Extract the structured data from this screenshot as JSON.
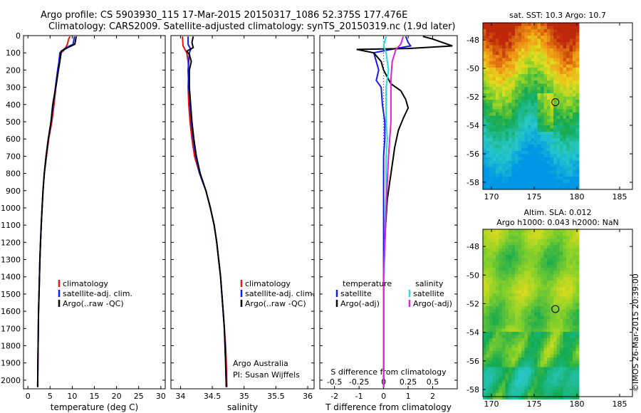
{
  "header": {
    "line1": "Argo profile: CS 5903930_115 17-Mar-2015 20150317_1086 52.375S 177.476E",
    "line2": "Climatology: CARS2009. Satellite-adjusted climatology: synTS_20150319.nc (1.9d later)"
  },
  "colors": {
    "climatology": "#ee1111",
    "satellite": "#1a1ae6",
    "argo": "#000000",
    "cyan": "#22dddd",
    "magenta": "#dd22dd"
  },
  "chart_data": [
    {
      "type": "line",
      "id": "temperature",
      "xlabel": "temperature (deg C)",
      "xlim": [
        -1,
        31
      ],
      "xticks": [
        0,
        5,
        10,
        15,
        20,
        25,
        30
      ],
      "ylim": [
        0,
        2050
      ],
      "yticks": [
        0,
        100,
        200,
        300,
        400,
        500,
        600,
        700,
        800,
        900,
        1000,
        1100,
        1200,
        1300,
        1400,
        1500,
        1600,
        1700,
        1800,
        1900,
        2000
      ],
      "legend": [
        "climatology",
        "satellite-adj. clim.",
        "Argo(..raw -QC)"
      ],
      "series": [
        {
          "name": "climatology",
          "color": "#ee1111",
          "points": [
            [
              9.5,
              5
            ],
            [
              9.2,
              20
            ],
            [
              8.9,
              50
            ],
            [
              8.3,
              80
            ],
            [
              7.5,
              100
            ],
            [
              7.2,
              150
            ],
            [
              6.8,
              200
            ],
            [
              6.3,
              300
            ],
            [
              5.9,
              400
            ],
            [
              5.4,
              500
            ],
            [
              4.7,
              600
            ],
            [
              4.2,
              700
            ],
            [
              3.7,
              800
            ],
            [
              3.4,
              900
            ],
            [
              3.2,
              1000
            ],
            [
              3.0,
              1100
            ],
            [
              2.85,
              1200
            ],
            [
              2.7,
              1300
            ],
            [
              2.6,
              1400
            ],
            [
              2.5,
              1500
            ],
            [
              2.4,
              1600
            ],
            [
              2.35,
              1700
            ],
            [
              2.3,
              1800
            ],
            [
              2.25,
              1900
            ],
            [
              2.2,
              2040
            ]
          ]
        },
        {
          "name": "satellite-adj. clim.",
          "color": "#1a1ae6",
          "points": [
            [
              10.5,
              5
            ],
            [
              10.4,
              20
            ],
            [
              10.2,
              50
            ],
            [
              8.3,
              75
            ],
            [
              7.2,
              100
            ],
            [
              7.0,
              150
            ],
            [
              6.7,
              200
            ],
            [
              6.2,
              300
            ],
            [
              5.7,
              400
            ],
            [
              5.2,
              500
            ],
            [
              4.6,
              600
            ],
            [
              4.1,
              700
            ],
            [
              3.7,
              800
            ],
            [
              3.4,
              900
            ],
            [
              3.2,
              1000
            ],
            [
              3.0,
              1100
            ],
            [
              2.85,
              1200
            ],
            [
              2.7,
              1300
            ],
            [
              2.6,
              1400
            ],
            [
              2.5,
              1500
            ],
            [
              2.4,
              1600
            ],
            [
              2.35,
              1700
            ],
            [
              2.3,
              1800
            ],
            [
              2.25,
              1900
            ],
            [
              2.2,
              2040
            ]
          ]
        },
        {
          "name": "Argo(..raw -QC)",
          "color": "#000000",
          "points": [
            [
              10.9,
              5
            ],
            [
              10.8,
              20
            ],
            [
              10.6,
              50
            ],
            [
              9.0,
              70
            ],
            [
              7.5,
              90
            ],
            [
              7.2,
              150
            ],
            [
              6.9,
              200
            ],
            [
              6.3,
              300
            ],
            [
              5.6,
              400
            ],
            [
              5.2,
              500
            ],
            [
              4.6,
              600
            ],
            [
              4.1,
              700
            ],
            [
              3.7,
              800
            ],
            [
              3.4,
              900
            ],
            [
              3.2,
              1000
            ],
            [
              3.0,
              1100
            ],
            [
              2.85,
              1200
            ],
            [
              2.7,
              1300
            ],
            [
              2.6,
              1400
            ],
            [
              2.5,
              1500
            ],
            [
              2.4,
              1600
            ],
            [
              2.35,
              1700
            ],
            [
              2.3,
              1800
            ],
            [
              2.25,
              1900
            ],
            [
              2.2,
              2040
            ]
          ]
        }
      ]
    },
    {
      "type": "line",
      "id": "salinity",
      "xlabel": "salinity",
      "xlim": [
        33.85,
        36.1
      ],
      "xticks": [
        34,
        34.5,
        35,
        35.5,
        36
      ],
      "ylim": [
        0,
        2050
      ],
      "legend": [
        "climatology",
        "satellite-adj. clim.",
        "Argo(..raw -QC)"
      ],
      "annotation": [
        "Argo Australia",
        "PI: Susan Wijffels"
      ],
      "series": [
        {
          "name": "climatology",
          "color": "#ee1111",
          "points": [
            [
              34.03,
              5
            ],
            [
              34.04,
              60
            ],
            [
              34.1,
              100
            ],
            [
              34.12,
              150
            ],
            [
              34.13,
              200
            ],
            [
              34.12,
              300
            ],
            [
              34.13,
              400
            ],
            [
              34.15,
              500
            ],
            [
              34.18,
              600
            ],
            [
              34.22,
              700
            ],
            [
              34.3,
              800
            ],
            [
              34.4,
              900
            ],
            [
              34.47,
              1000
            ],
            [
              34.53,
              1100
            ],
            [
              34.57,
              1200
            ],
            [
              34.6,
              1300
            ],
            [
              34.63,
              1400
            ],
            [
              34.65,
              1500
            ],
            [
              34.67,
              1600
            ],
            [
              34.69,
              1700
            ],
            [
              34.71,
              1800
            ],
            [
              34.72,
              1900
            ],
            [
              34.73,
              2040
            ]
          ]
        },
        {
          "name": "satellite-adj. clim.",
          "color": "#1a1ae6",
          "points": [
            [
              34.12,
              5
            ],
            [
              34.12,
              50
            ],
            [
              34.16,
              80
            ],
            [
              34.14,
              100
            ],
            [
              34.13,
              150
            ],
            [
              34.12,
              200
            ],
            [
              34.13,
              300
            ],
            [
              34.15,
              400
            ],
            [
              34.17,
              500
            ],
            [
              34.2,
              600
            ],
            [
              34.24,
              700
            ],
            [
              34.3,
              800
            ],
            [
              34.4,
              900
            ],
            [
              34.47,
              1000
            ],
            [
              34.53,
              1100
            ],
            [
              34.57,
              1200
            ],
            [
              34.6,
              1300
            ],
            [
              34.63,
              1400
            ],
            [
              34.65,
              1500
            ],
            [
              34.67,
              1600
            ],
            [
              34.69,
              1700
            ],
            [
              34.7,
              1800
            ],
            [
              34.71,
              1900
            ],
            [
              34.72,
              2040
            ]
          ]
        },
        {
          "name": "Argo(..raw -QC)",
          "color": "#000000",
          "points": [
            [
              34.2,
              5
            ],
            [
              34.18,
              40
            ],
            [
              34.2,
              70
            ],
            [
              34.1,
              90
            ],
            [
              34.14,
              110
            ],
            [
              34.17,
              150
            ],
            [
              34.14,
              200
            ],
            [
              34.14,
              300
            ],
            [
              34.16,
              400
            ],
            [
              34.18,
              500
            ],
            [
              34.21,
              600
            ],
            [
              34.25,
              700
            ],
            [
              34.31,
              800
            ],
            [
              34.4,
              900
            ],
            [
              34.47,
              1000
            ],
            [
              34.53,
              1100
            ],
            [
              34.57,
              1200
            ],
            [
              34.6,
              1300
            ],
            [
              34.63,
              1400
            ],
            [
              34.65,
              1500
            ],
            [
              34.67,
              1600
            ],
            [
              34.69,
              1700
            ],
            [
              34.7,
              1800
            ],
            [
              34.71,
              1900
            ],
            [
              34.72,
              2040
            ]
          ]
        }
      ]
    },
    {
      "type": "line",
      "id": "difference",
      "xlabel": "T difference from climatology",
      "xlabel_top": "S difference from climatology",
      "xlim": [
        -2.6,
        3.0
      ],
      "xticks": [
        -2,
        -1,
        0,
        1,
        2
      ],
      "sxticks": [
        "-0.5",
        "-0.25",
        "0",
        "0.25",
        "0.5"
      ],
      "ylim": [
        0,
        2050
      ],
      "legend": {
        "temperature": [
          "temperature",
          "satellite",
          "Argo(-adj)"
        ],
        "salinity": [
          "salinity",
          "satellite",
          "Argo(-adj)"
        ]
      },
      "series": [
        {
          "name": "satellite",
          "group": "temperature",
          "color": "#1a1ae6",
          "points": [
            [
              0.9,
              5
            ],
            [
              1.0,
              40
            ],
            [
              1.1,
              60
            ],
            [
              0.3,
              80
            ],
            [
              -0.4,
              100
            ],
            [
              -0.3,
              150
            ],
            [
              -0.2,
              200
            ],
            [
              -0.3,
              260
            ],
            [
              -0.1,
              300
            ],
            [
              -0.05,
              400
            ],
            [
              0.05,
              500
            ],
            [
              0.05,
              600
            ],
            [
              0.0,
              700
            ],
            [
              0.0,
              900
            ],
            [
              0.0,
              1200
            ],
            [
              0.0,
              2040
            ]
          ]
        },
        {
          "name": "Argo(-adj)",
          "group": "temperature",
          "color": "#000000",
          "points": [
            [
              1.6,
              5
            ],
            [
              2.0,
              20
            ],
            [
              2.8,
              60
            ],
            [
              1.0,
              75
            ],
            [
              -1.1,
              80
            ],
            [
              -0.4,
              100
            ],
            [
              -0.1,
              150
            ],
            [
              0.0,
              200
            ],
            [
              0.3,
              280
            ],
            [
              0.7,
              320
            ],
            [
              0.9,
              370
            ],
            [
              1.0,
              420
            ],
            [
              0.8,
              480
            ],
            [
              0.6,
              550
            ],
            [
              0.45,
              650
            ],
            [
              0.35,
              750
            ],
            [
              0.25,
              850
            ],
            [
              0.15,
              950
            ],
            [
              0.08,
              1100
            ],
            [
              0.03,
              1300
            ],
            [
              0.0,
              1500
            ],
            [
              0.0,
              2040
            ]
          ]
        },
        {
          "name": "satellite",
          "group": "salinity",
          "color": "#22dddd",
          "points": [
            [
              0.1,
              5
            ],
            [
              0.0,
              60
            ],
            [
              0.1,
              100
            ],
            [
              0.2,
              200
            ],
            [
              0.1,
              300
            ],
            [
              0.1,
              400
            ],
            [
              0.1,
              500
            ],
            [
              0.15,
              600
            ],
            [
              0.1,
              700
            ],
            [
              0.1,
              900
            ],
            [
              0.05,
              1200
            ],
            [
              0.0,
              1500
            ],
            [
              0.0,
              2040
            ]
          ]
        },
        {
          "name": "Argo(-adj)",
          "group": "salinity",
          "color": "#dd22dd",
          "points": [
            [
              0.8,
              5
            ],
            [
              0.7,
              50
            ],
            [
              0.5,
              80
            ],
            [
              0.35,
              150
            ],
            [
              0.3,
              250
            ],
            [
              0.3,
              400
            ],
            [
              0.3,
              500
            ],
            [
              0.25,
              600
            ],
            [
              0.2,
              700
            ],
            [
              0.15,
              850
            ],
            [
              0.1,
              1000
            ],
            [
              0.05,
              1200
            ],
            [
              0.0,
              1400
            ],
            [
              0.0,
              2040
            ]
          ]
        }
      ]
    },
    {
      "type": "heatmap",
      "id": "sst-map",
      "title": "sat. SST: 10.3 Argo: 10.7",
      "xticks": [
        170,
        175,
        180,
        185
      ],
      "yticks": [
        -48,
        -50,
        -52,
        -54,
        -56,
        -58
      ],
      "xlim": [
        169,
        186.5
      ],
      "ylim": [
        -58.5,
        -46.8
      ],
      "data_xmax": 180,
      "marker": {
        "lon": 177.476,
        "lat": -52.375
      }
    },
    {
      "type": "heatmap",
      "id": "sla-map",
      "title": [
        "Altim. SLA: 0.012",
        "Argo h1000: 0.043 h2000: NaN"
      ],
      "xticks": [
        170,
        175,
        180,
        185
      ],
      "yticks": [
        -48,
        -50,
        -52,
        -54,
        -56,
        -58
      ],
      "xlim": [
        169,
        186.5
      ],
      "ylim": [
        -58.5,
        -46.8
      ],
      "data_xmax": 180,
      "marker": {
        "lon": 177.476,
        "lat": -52.375
      }
    }
  ],
  "credit": "©IMOS 26-Mar-2015 20:39:00"
}
